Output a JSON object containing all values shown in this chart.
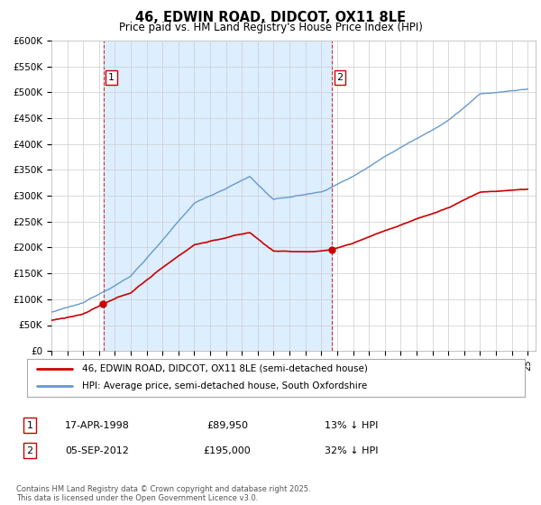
{
  "title": "46, EDWIN ROAD, DIDCOT, OX11 8LE",
  "subtitle": "Price paid vs. HM Land Registry's House Price Index (HPI)",
  "ylabel_ticks": [
    "£0",
    "£50K",
    "£100K",
    "£150K",
    "£200K",
    "£250K",
    "£300K",
    "£350K",
    "£400K",
    "£450K",
    "£500K",
    "£550K",
    "£600K"
  ],
  "ytick_values": [
    0,
    50000,
    100000,
    150000,
    200000,
    250000,
    300000,
    350000,
    400000,
    450000,
    500000,
    550000,
    600000
  ],
  "sale1_date": 1998.29,
  "sale1_price": 89950,
  "sale1_label": "1",
  "sale2_date": 2012.67,
  "sale2_price": 195000,
  "sale2_label": "2",
  "line_color_actual": "#cc0000",
  "line_color_hpi": "#6699cc",
  "vline_color": "#cc0000",
  "shade_color": "#ddeeff",
  "legend_label_actual": "46, EDWIN ROAD, DIDCOT, OX11 8LE (semi-detached house)",
  "legend_label_hpi": "HPI: Average price, semi-detached house, South Oxfordshire",
  "annotation1_date": "17-APR-1998",
  "annotation1_price": "£89,950",
  "annotation1_hpi": "13% ↓ HPI",
  "annotation2_date": "05-SEP-2012",
  "annotation2_price": "£195,000",
  "annotation2_hpi": "32% ↓ HPI",
  "footer": "Contains HM Land Registry data © Crown copyright and database right 2025.\nThis data is licensed under the Open Government Licence v3.0.",
  "xmin": 1995,
  "xmax": 2025.5,
  "ymin": 0,
  "ymax": 600000,
  "background_color": "#ffffff",
  "grid_color": "#cccccc"
}
